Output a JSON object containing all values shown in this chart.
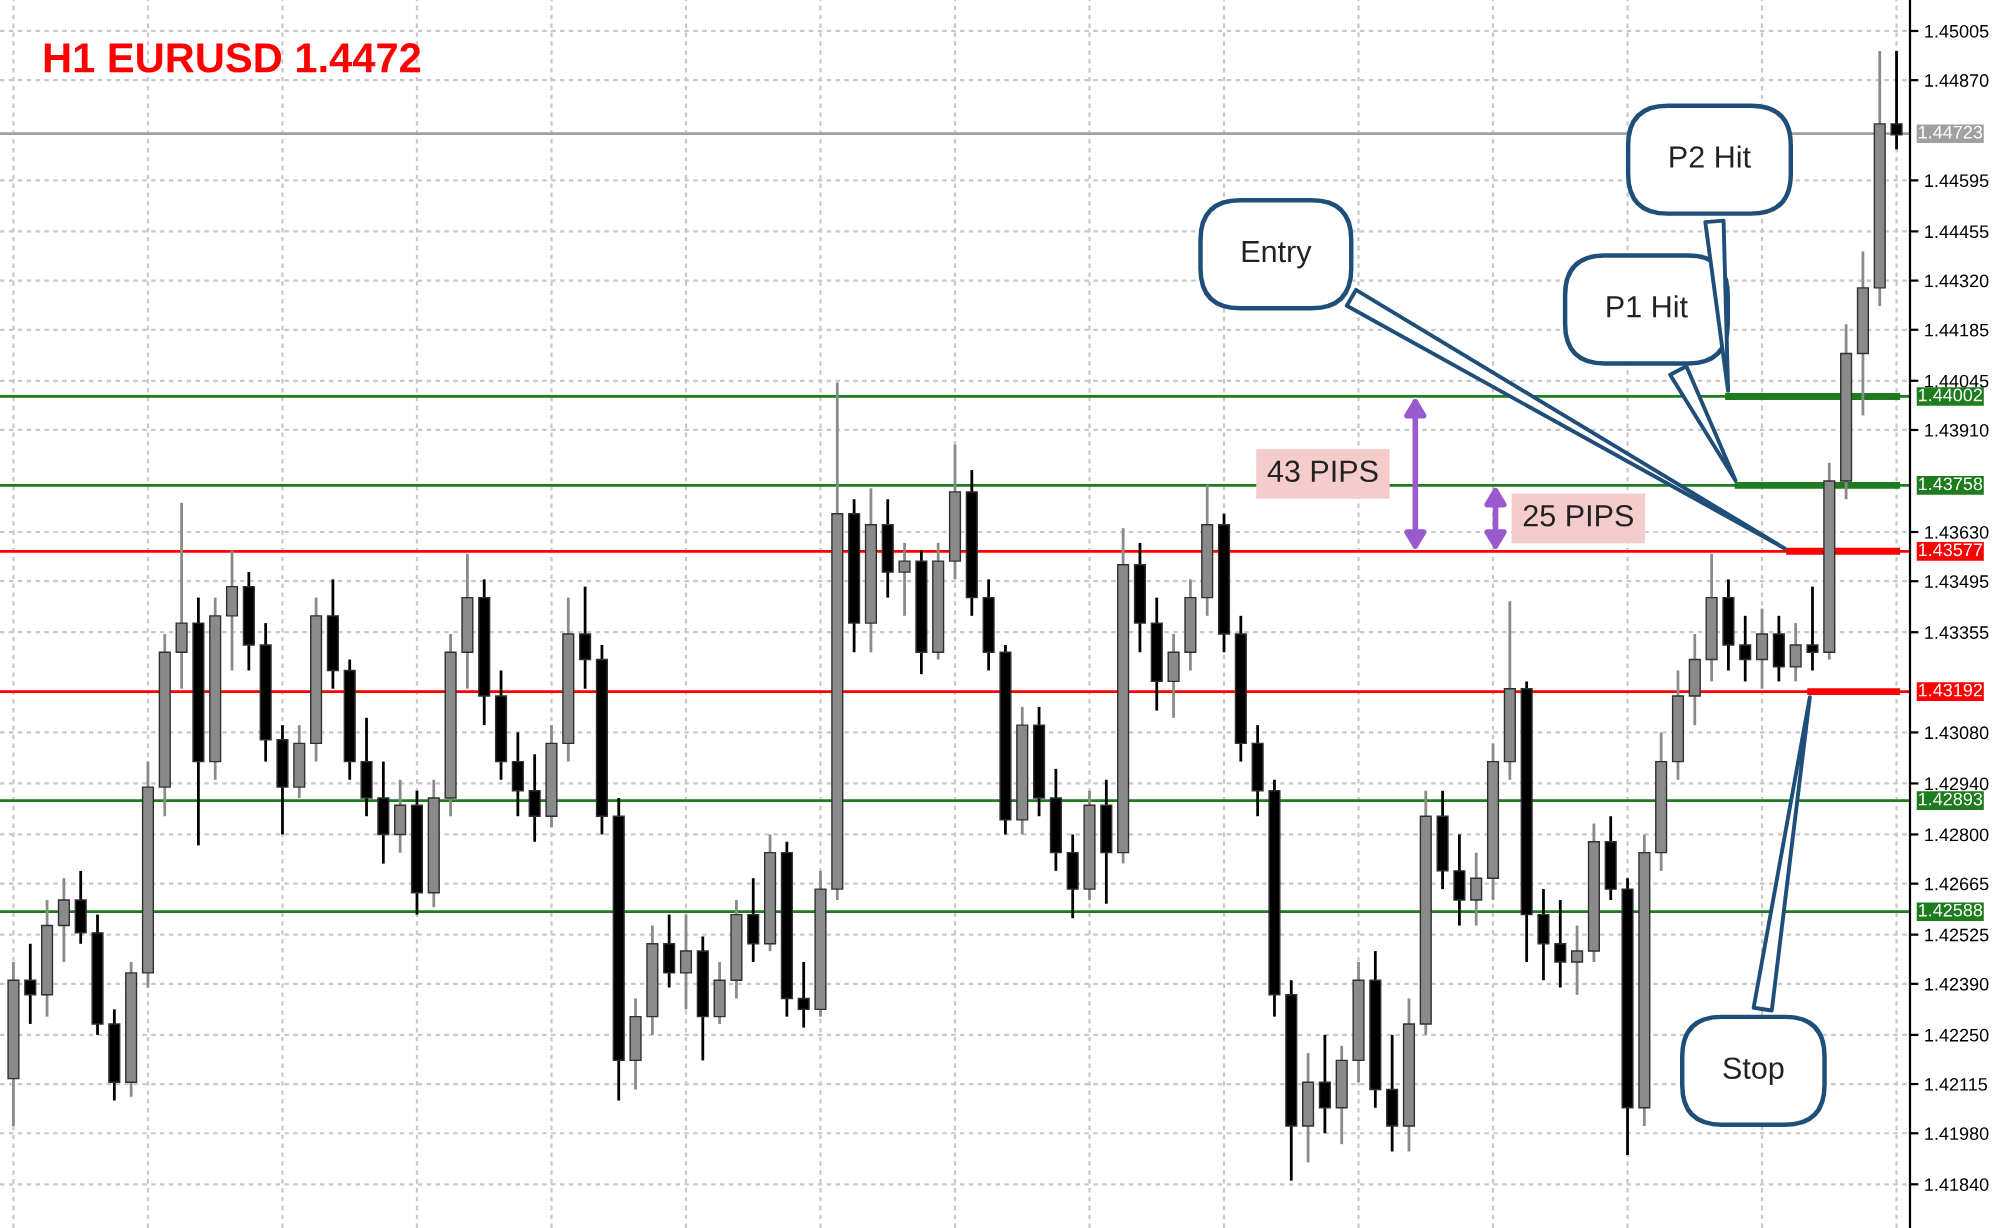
{
  "chart_data": {
    "type": "candlestick",
    "title": "H1 EURUSD 1.4472",
    "categories": [
      null,
      null,
      null,
      null,
      null,
      null,
      null,
      null,
      null,
      null,
      null,
      null,
      null,
      null,
      null,
      null,
      null,
      null,
      null,
      null,
      null,
      null,
      null,
      null,
      null,
      null,
      null,
      null,
      null,
      null,
      null,
      null,
      null,
      null,
      null,
      null,
      null,
      null,
      null,
      null,
      null,
      null,
      null,
      null,
      null,
      null,
      null,
      null,
      null,
      null,
      null,
      null,
      null,
      null,
      null,
      null,
      null,
      null,
      null,
      null,
      null,
      null,
      null,
      null,
      null,
      null,
      null,
      null,
      null,
      null,
      null,
      null,
      null,
      null,
      null,
      null,
      null,
      null,
      null,
      null,
      null,
      null,
      null,
      null,
      null,
      null,
      null,
      null,
      null,
      null,
      null,
      null,
      null,
      null,
      null,
      null,
      null,
      null,
      null,
      null,
      null,
      null,
      null,
      null,
      null,
      null,
      null,
      null,
      null,
      null,
      null,
      null,
      null
    ],
    "ohlc": [
      [
        1.4213,
        1.4245,
        1.42,
        1.424
      ],
      [
        1.424,
        1.425,
        1.4228,
        1.4236
      ],
      [
        1.4236,
        1.4262,
        1.423,
        1.4255
      ],
      [
        1.4255,
        1.4268,
        1.4245,
        1.4262
      ],
      [
        1.4262,
        1.427,
        1.425,
        1.4253
      ],
      [
        1.4253,
        1.4258,
        1.4225,
        1.4228
      ],
      [
        1.4228,
        1.4232,
        1.4207,
        1.4212
      ],
      [
        1.4212,
        1.4245,
        1.4208,
        1.4242
      ],
      [
        1.4242,
        1.43,
        1.4238,
        1.4293
      ],
      [
        1.4293,
        1.4335,
        1.4285,
        1.433
      ],
      [
        1.433,
        1.4371,
        1.432,
        1.4338
      ],
      [
        1.4338,
        1.4345,
        1.4277,
        1.43
      ],
      [
        1.43,
        1.4345,
        1.4295,
        1.434
      ],
      [
        1.434,
        1.4358,
        1.4325,
        1.4348
      ],
      [
        1.4348,
        1.4352,
        1.4325,
        1.4332
      ],
      [
        1.4332,
        1.4338,
        1.43,
        1.4306
      ],
      [
        1.4306,
        1.431,
        1.428,
        1.4293
      ],
      [
        1.4293,
        1.431,
        1.429,
        1.4305
      ],
      [
        1.4305,
        1.4345,
        1.43,
        1.434
      ],
      [
        1.434,
        1.435,
        1.432,
        1.4325
      ],
      [
        1.4325,
        1.4328,
        1.4295,
        1.43
      ],
      [
        1.43,
        1.4312,
        1.4285,
        1.429
      ],
      [
        1.429,
        1.43,
        1.4272,
        1.428
      ],
      [
        1.428,
        1.4295,
        1.4275,
        1.4288
      ],
      [
        1.4288,
        1.4292,
        1.4258,
        1.4264
      ],
      [
        1.4264,
        1.4295,
        1.426,
        1.429
      ],
      [
        1.429,
        1.4335,
        1.4285,
        1.433
      ],
      [
        1.433,
        1.4357,
        1.432,
        1.4345
      ],
      [
        1.4345,
        1.435,
        1.431,
        1.4318
      ],
      [
        1.4318,
        1.4325,
        1.4295,
        1.43
      ],
      [
        1.43,
        1.4308,
        1.4285,
        1.4292
      ],
      [
        1.4292,
        1.4302,
        1.4278,
        1.4285
      ],
      [
        1.4285,
        1.431,
        1.4282,
        1.4305
      ],
      [
        1.4305,
        1.4345,
        1.43,
        1.4335
      ],
      [
        1.4335,
        1.4348,
        1.432,
        1.4328
      ],
      [
        1.4328,
        1.4332,
        1.428,
        1.4285
      ],
      [
        1.4285,
        1.429,
        1.4207,
        1.4218
      ],
      [
        1.4218,
        1.4235,
        1.421,
        1.423
      ],
      [
        1.423,
        1.4255,
        1.4225,
        1.425
      ],
      [
        1.425,
        1.4258,
        1.4238,
        1.4242
      ],
      [
        1.4242,
        1.4258,
        1.4232,
        1.4248
      ],
      [
        1.4248,
        1.4252,
        1.4218,
        1.423
      ],
      [
        1.423,
        1.4245,
        1.4228,
        1.424
      ],
      [
        1.424,
        1.4262,
        1.4235,
        1.4258
      ],
      [
        1.4258,
        1.4268,
        1.4245,
        1.425
      ],
      [
        1.425,
        1.428,
        1.4248,
        1.4275
      ],
      [
        1.4275,
        1.4278,
        1.423,
        1.4235
      ],
      [
        1.4235,
        1.4245,
        1.4227,
        1.4232
      ],
      [
        1.4232,
        1.427,
        1.423,
        1.4265
      ],
      [
        1.4265,
        1.4404,
        1.4262,
        1.4368
      ],
      [
        1.4368,
        1.4372,
        1.433,
        1.4338
      ],
      [
        1.4338,
        1.4375,
        1.433,
        1.4365
      ],
      [
        1.4365,
        1.4372,
        1.4345,
        1.4352
      ],
      [
        1.4352,
        1.436,
        1.434,
        1.4355
      ],
      [
        1.4355,
        1.4358,
        1.4324,
        1.433
      ],
      [
        1.433,
        1.436,
        1.4328,
        1.4355
      ],
      [
        1.4355,
        1.4387,
        1.435,
        1.4374
      ],
      [
        1.4374,
        1.438,
        1.434,
        1.4345
      ],
      [
        1.4345,
        1.435,
        1.4325,
        1.433
      ],
      [
        1.433,
        1.4332,
        1.428,
        1.4284
      ],
      [
        1.4284,
        1.4315,
        1.428,
        1.431
      ],
      [
        1.431,
        1.4315,
        1.4285,
        1.429
      ],
      [
        1.429,
        1.4298,
        1.427,
        1.4275
      ],
      [
        1.4275,
        1.428,
        1.4257,
        1.4265
      ],
      [
        1.4265,
        1.4292,
        1.4262,
        1.4288
      ],
      [
        1.4288,
        1.4295,
        1.4261,
        1.4275
      ],
      [
        1.4275,
        1.4364,
        1.4272,
        1.4354
      ],
      [
        1.4354,
        1.436,
        1.433,
        1.4338
      ],
      [
        1.4338,
        1.4345,
        1.4314,
        1.4322
      ],
      [
        1.4322,
        1.4335,
        1.4312,
        1.433
      ],
      [
        1.433,
        1.435,
        1.4325,
        1.4345
      ],
      [
        1.4345,
        1.4376,
        1.434,
        1.4365
      ],
      [
        1.4365,
        1.4368,
        1.433,
        1.4335
      ],
      [
        1.4335,
        1.434,
        1.43,
        1.4305
      ],
      [
        1.4305,
        1.431,
        1.4285,
        1.4292
      ],
      [
        1.4292,
        1.4295,
        1.423,
        1.4236
      ],
      [
        1.4236,
        1.424,
        1.4185,
        1.42
      ],
      [
        1.42,
        1.422,
        1.419,
        1.4212
      ],
      [
        1.4212,
        1.4225,
        1.4198,
        1.4205
      ],
      [
        1.4205,
        1.4222,
        1.4195,
        1.4218
      ],
      [
        1.4218,
        1.4245,
        1.4212,
        1.424
      ],
      [
        1.424,
        1.4248,
        1.4205,
        1.421
      ],
      [
        1.421,
        1.4225,
        1.4193,
        1.42
      ],
      [
        1.42,
        1.4235,
        1.4193,
        1.4228
      ],
      [
        1.4228,
        1.4292,
        1.4225,
        1.4285
      ],
      [
        1.4285,
        1.4292,
        1.4265,
        1.427
      ],
      [
        1.427,
        1.428,
        1.4255,
        1.4262
      ],
      [
        1.4262,
        1.4275,
        1.4255,
        1.4268
      ],
      [
        1.4268,
        1.4305,
        1.4262,
        1.43
      ],
      [
        1.43,
        1.4344,
        1.4295,
        1.432
      ],
      [
        1.432,
        1.4322,
        1.4245,
        1.4258
      ],
      [
        1.4258,
        1.4265,
        1.424,
        1.425
      ],
      [
        1.425,
        1.4262,
        1.4238,
        1.4245
      ],
      [
        1.4245,
        1.4255,
        1.4236,
        1.4248
      ],
      [
        1.4248,
        1.4283,
        1.4245,
        1.4278
      ],
      [
        1.4278,
        1.4285,
        1.4262,
        1.4265
      ],
      [
        1.4265,
        1.4268,
        1.4192,
        1.4205
      ],
      [
        1.4205,
        1.428,
        1.42,
        1.4275
      ],
      [
        1.4275,
        1.4308,
        1.427,
        1.43
      ],
      [
        1.43,
        1.4325,
        1.4295,
        1.4318
      ],
      [
        1.4318,
        1.4335,
        1.431,
        1.4328
      ],
      [
        1.4328,
        1.4357,
        1.4322,
        1.4345
      ],
      [
        1.4345,
        1.435,
        1.4325,
        1.4332
      ],
      [
        1.4332,
        1.434,
        1.4322,
        1.4328
      ],
      [
        1.4328,
        1.4342,
        1.432,
        1.4335
      ],
      [
        1.4335,
        1.434,
        1.4322,
        1.4326
      ],
      [
        1.4326,
        1.4338,
        1.4322,
        1.4332
      ],
      [
        1.4332,
        1.4348,
        1.4325,
        1.433
      ],
      [
        1.433,
        1.4382,
        1.4328,
        1.4377
      ],
      [
        1.4377,
        1.442,
        1.4372,
        1.4412
      ],
      [
        1.4412,
        1.444,
        1.4395,
        1.443
      ],
      [
        1.443,
        1.4495,
        1.4425,
        1.4475
      ],
      [
        1.4475,
        1.4495,
        1.4468,
        1.4472
      ]
    ],
    "ylim": [
      1.4172,
      1.4509
    ],
    "yticks": [
      {
        "value": 1.45005,
        "label": "1.45005"
      },
      {
        "value": 1.4487,
        "label": "1.44870"
      },
      {
        "value": 1.44595,
        "label": "1.44595"
      },
      {
        "value": 1.44455,
        "label": "1.44455"
      },
      {
        "value": 1.4432,
        "label": "1.44320"
      },
      {
        "value": 1.44185,
        "label": "1.44185"
      },
      {
        "value": 1.44045,
        "label": "1.44045"
      },
      {
        "value": 1.4391,
        "label": "1.43910"
      },
      {
        "value": 1.4363,
        "label": "1.43630"
      },
      {
        "value": 1.43495,
        "label": "1.43495"
      },
      {
        "value": 1.43355,
        "label": "1.43355"
      },
      {
        "value": 1.4308,
        "label": "1.43080"
      },
      {
        "value": 1.4294,
        "label": "1.42940"
      },
      {
        "value": 1.428,
        "label": "1.42800"
      },
      {
        "value": 1.42665,
        "label": "1.42665"
      },
      {
        "value": 1.42525,
        "label": "1.42525"
      },
      {
        "value": 1.4239,
        "label": "1.42390"
      },
      {
        "value": 1.4225,
        "label": "1.42250"
      },
      {
        "value": 1.42115,
        "label": "1.42115"
      },
      {
        "value": 1.4198,
        "label": "1.41980"
      },
      {
        "value": 1.4184,
        "label": "1.41840"
      }
    ],
    "tick_labels": "y",
    "grid": true,
    "ref_lines": [
      {
        "axis": "y",
        "value": 1.44723,
        "label": "1.44723",
        "color": "#a0a0a0"
      },
      {
        "axis": "y",
        "value": 1.44002,
        "label": "1.44002",
        "color": "#1e7b1e"
      },
      {
        "axis": "y",
        "value": 1.43758,
        "label": "1.43758",
        "color": "#1e7b1e"
      },
      {
        "axis": "y",
        "value": 1.43577,
        "label": "1.43577",
        "color": "#ff0000"
      },
      {
        "axis": "y",
        "value": 1.43192,
        "label": "1.43192",
        "color": "#ff0000"
      },
      {
        "axis": "y",
        "value": 1.42893,
        "label": "1.42893",
        "color": "#1e7b1e"
      },
      {
        "axis": "y",
        "value": 1.42588,
        "label": "1.42588",
        "color": "#1e7b1e"
      }
    ],
    "annotations": [
      "Entry",
      "P1 Hit",
      "P2 Hit",
      "Stop",
      "43 PIPS",
      "25 PIPS"
    ]
  }
}
